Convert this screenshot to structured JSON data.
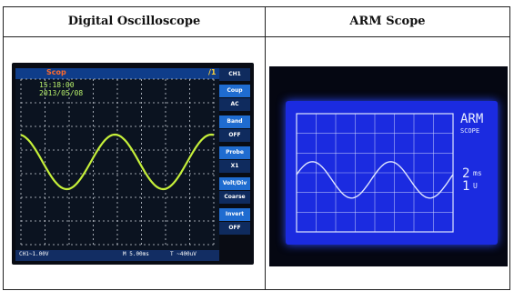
{
  "table": {
    "headers": [
      "Digital Oscilloscope",
      "ARM Scope"
    ]
  },
  "digital_oscilloscope": {
    "top_label": "Scop",
    "top_right_label": "/1",
    "time": "15:18:00",
    "date": "2013/05/08",
    "side_menu": [
      "CH1",
      "Coup",
      "AC",
      "Band",
      "OFF",
      "Probe",
      "X1",
      "Volt/Div",
      "Coarse",
      "Invert",
      "OFF"
    ],
    "bottom_readouts": [
      "CH1~1.00V",
      "M 5.00ms",
      "T ~400uV"
    ]
  },
  "arm_scope": {
    "title_line1": "ARM",
    "title_line2": "SCOPE",
    "value_top": "2",
    "unit_top": "ms",
    "value_bottom": "1",
    "unit_bottom": "U"
  },
  "colors": {
    "osc_wave": "#c6f03a",
    "osc_grid": "#c9ced6",
    "arm_panel": "#1b2be0",
    "arm_lines": "#dfe6ff"
  }
}
